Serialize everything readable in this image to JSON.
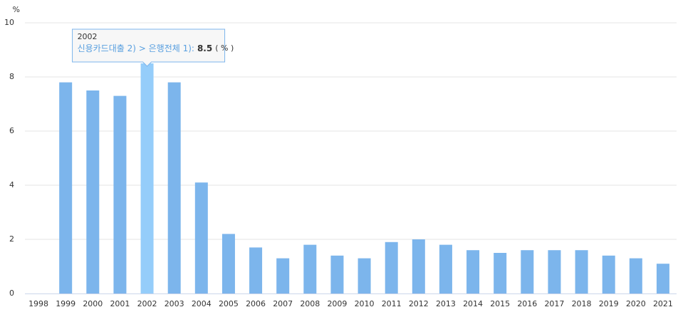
{
  "chart_data": {
    "type": "bar",
    "unit": "%",
    "categories": [
      "1998",
      "1999",
      "2000",
      "2001",
      "2002",
      "2003",
      "2004",
      "2005",
      "2006",
      "2007",
      "2008",
      "2009",
      "2010",
      "2011",
      "2012",
      "2013",
      "2014",
      "2015",
      "2016",
      "2017",
      "2018",
      "2019",
      "2020",
      "2021"
    ],
    "series": [
      {
        "name": "신용카드대출 2) > 은행전체 1)",
        "color": "#7cb5ec",
        "values": [
          null,
          7.8,
          7.5,
          7.3,
          8.5,
          7.8,
          4.1,
          2.2,
          1.7,
          1.3,
          1.8,
          1.4,
          1.3,
          1.9,
          2.0,
          1.8,
          1.6,
          1.5,
          1.6,
          1.6,
          1.6,
          1.4,
          1.3,
          1.1
        ]
      }
    ],
    "ylim": [
      0,
      10
    ],
    "yticks": [
      0,
      2,
      4,
      6,
      8,
      10
    ],
    "grid": true,
    "highlight_color": "#95cdfa",
    "tooltip": {
      "title": "2002",
      "label": "신용카드대출 2) > 은행전체 1):",
      "unit": "( % )"
    }
  }
}
